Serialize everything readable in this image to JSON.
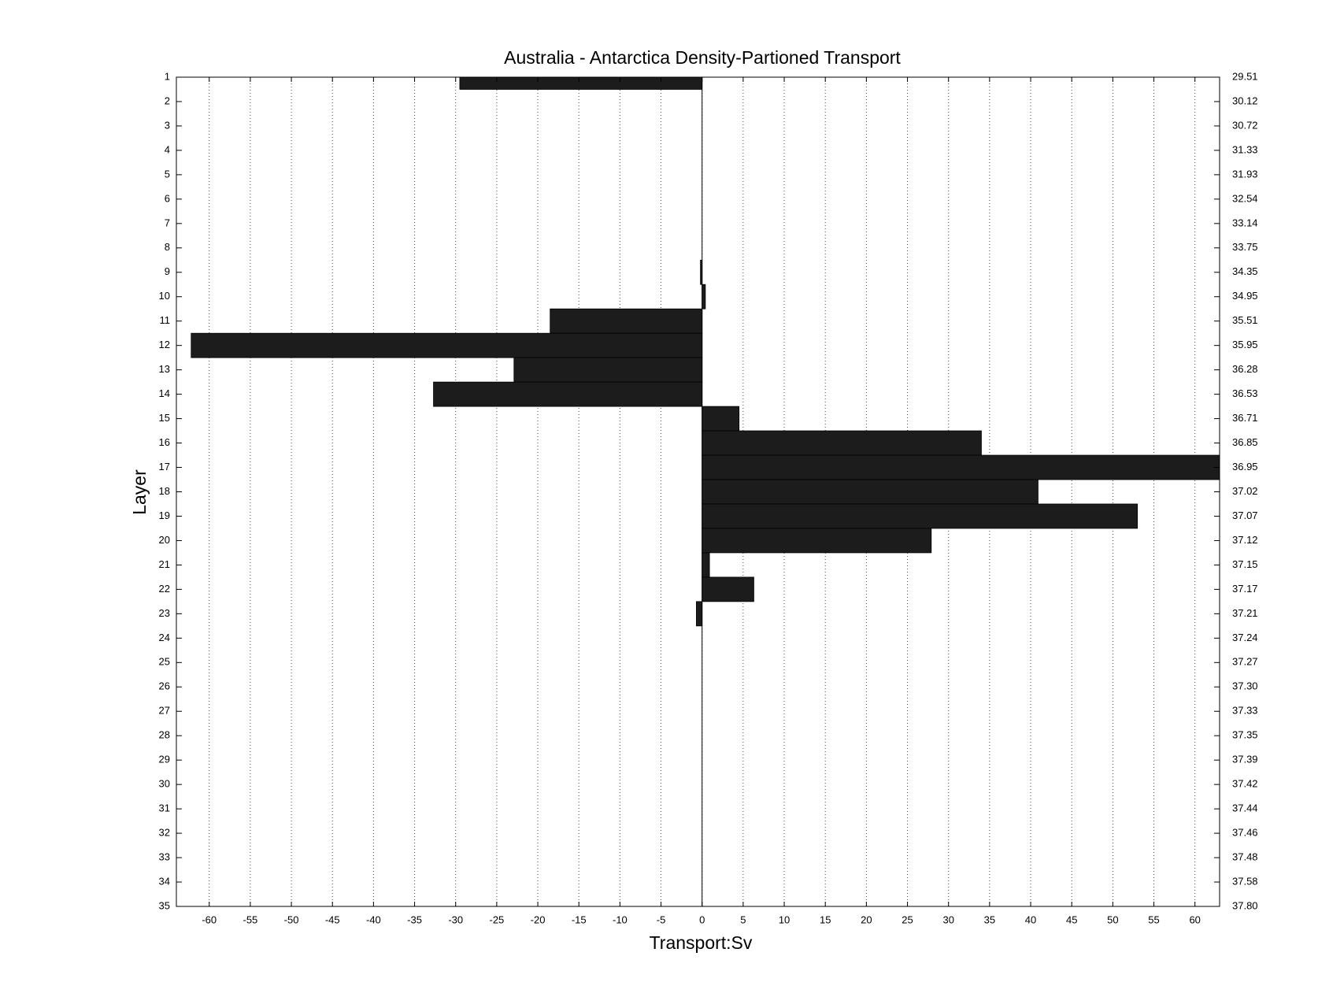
{
  "chart_data": {
    "type": "hbar",
    "title": "Australia - Antarctica Density-Partioned Transport",
    "xlabel": "Transport:Sv",
    "ylabel": "Layer",
    "y": [
      1,
      2,
      3,
      4,
      5,
      6,
      7,
      8,
      9,
      10,
      11,
      12,
      13,
      14,
      15,
      16,
      17,
      18,
      19,
      20,
      21,
      22,
      23,
      24,
      25,
      26,
      27,
      28,
      29,
      30,
      31,
      32,
      33,
      34,
      35
    ],
    "values": [
      -29.5,
      0,
      0,
      0,
      0,
      0,
      0,
      0,
      -0.2,
      0.4,
      -18.5,
      -62.2,
      -22.9,
      -32.7,
      4.5,
      34.0,
      63.0,
      40.9,
      53.0,
      27.9,
      0.9,
      6.3,
      -0.7,
      0,
      0,
      0,
      0,
      0,
      0,
      0,
      0,
      0,
      0,
      0,
      0
    ],
    "y2_labels": [
      "29.51",
      "30.12",
      "30.72",
      "31.33",
      "31.93",
      "32.54",
      "33.14",
      "33.75",
      "34.35",
      "34.95",
      "35.51",
      "35.95",
      "36.28",
      "36.53",
      "36.71",
      "36.85",
      "36.95",
      "37.02",
      "37.07",
      "37.12",
      "37.15",
      "37.17",
      "37.21",
      "37.24",
      "37.27",
      "37.30",
      "37.33",
      "37.35",
      "37.39",
      "37.42",
      "37.44",
      "37.46",
      "37.48",
      "37.58",
      "37.80"
    ],
    "color": "#1c1c1c",
    "xlim": [
      -64,
      63
    ],
    "ylim": [
      1,
      35
    ],
    "y_reversed": true,
    "xticks": [
      -60,
      -55,
      -50,
      -45,
      -40,
      -35,
      -30,
      -25,
      -20,
      -15,
      -10,
      -5,
      0,
      5,
      10,
      15,
      20,
      25,
      30,
      35,
      40,
      45,
      50,
      55,
      60
    ],
    "grid": true
  }
}
